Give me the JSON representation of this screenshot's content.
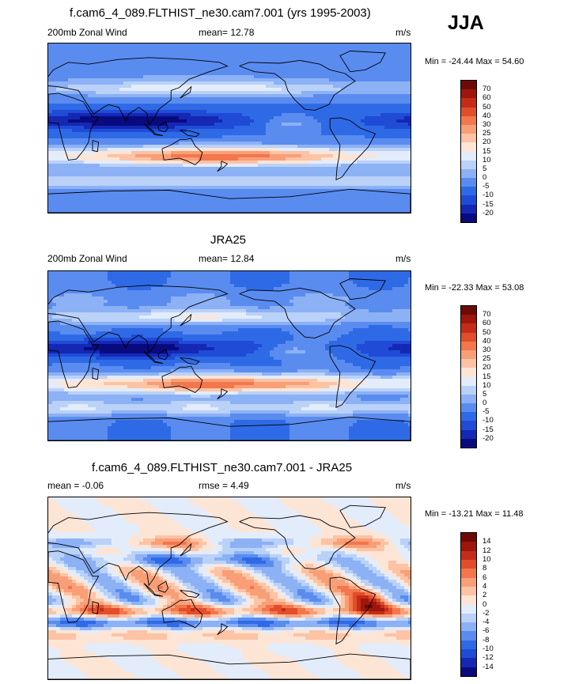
{
  "season": "JJA",
  "colors": {
    "ramp_wind": [
      "#0a0a7f",
      "#1428b4",
      "#1f4bd7",
      "#2f6ae6",
      "#5a8cf0",
      "#8cb1f5",
      "#bad1f8",
      "#e3ecfb",
      "#fde5d5",
      "#fcc3a5",
      "#f89f78",
      "#f3764c",
      "#e24d2b",
      "#c52c18",
      "#9c160c",
      "#6e0a05"
    ],
    "ramp_diff": [
      "#0a0a7f",
      "#1428b4",
      "#1f4bd7",
      "#2f6ae6",
      "#5a8cf0",
      "#8cb1f5",
      "#bad1f8",
      "#e3ecfb",
      "#fde5d5",
      "#fcc3a5",
      "#f89f78",
      "#f3764c",
      "#e24d2b",
      "#c52c18",
      "#9c160c",
      "#6e0a05"
    ],
    "land_outline": "#000000"
  },
  "chart_data": [
    {
      "type": "heatmap",
      "title": "f.cam6_4_089.FLTHIST_ne30.cam7.001 (yrs 1995-2003)",
      "left_label": "200mb Zonal Wind",
      "center_label": "mean=  12.78",
      "right_label": "m/s",
      "min_text": "Min = -24.44 Max =  54.60",
      "colorbar_labels": [
        "70",
        "60",
        "50",
        "40",
        "30",
        "25",
        "20",
        "15",
        "10",
        "5",
        "0",
        "-5",
        "-10",
        "-15",
        "-20"
      ],
      "field": "zonal_wind"
    },
    {
      "type": "heatmap",
      "title": "JRA25",
      "left_label": "200mb Zonal Wind",
      "center_label": "mean=  12.84",
      "right_label": "m/s",
      "min_text": "Min = -22.33 Max =  53.08",
      "colorbar_labels": [
        "70",
        "60",
        "50",
        "40",
        "30",
        "25",
        "20",
        "15",
        "10",
        "5",
        "0",
        "-5",
        "-10",
        "-15",
        "-20"
      ],
      "field": "zonal_wind"
    },
    {
      "type": "heatmap",
      "title": "f.cam6_4_089.FLTHIST_ne30.cam7.001 - JRA25",
      "left_label": "mean =  -0.06",
      "center_label": "rmse =    4.49",
      "right_label": "m/s",
      "min_text": "Min = -13.21 Max =  11.48",
      "colorbar_labels": [
        "14",
        "12",
        "10",
        "8",
        "6",
        "4",
        "2",
        "0",
        "-2",
        "-4",
        "-6",
        "-8",
        "-10",
        "-12",
        "-14"
      ],
      "field": "difference"
    }
  ]
}
